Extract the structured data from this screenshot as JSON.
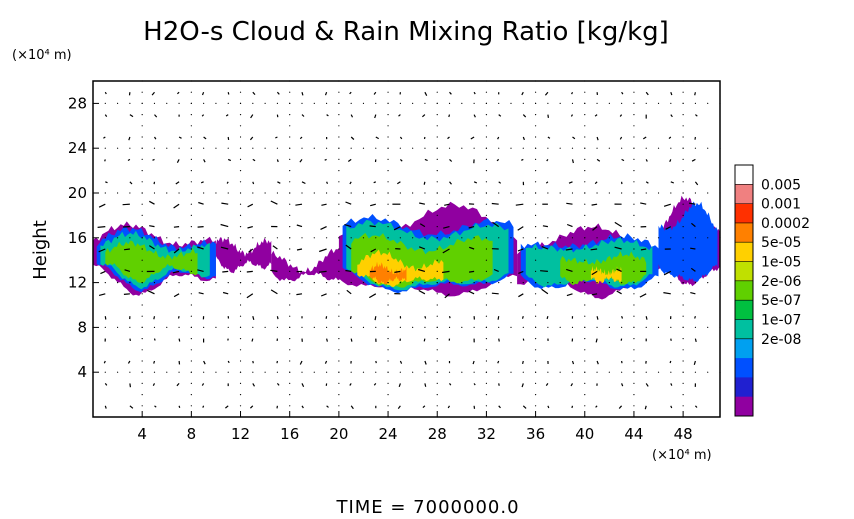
{
  "chart_data": {
    "type": "heatmap",
    "title": "H2O-s Cloud & Rain Mixing Ratio [kg/kg]",
    "ylabel": "Height",
    "x_unit_label": "(×10⁴ m)",
    "y_unit_label": "(×10⁴ m)",
    "footer": "TIME  =  7000000.0",
    "xlim": [
      0,
      51
    ],
    "ylim": [
      0,
      30
    ],
    "x_ticks": [
      "4",
      "8",
      "12",
      "16",
      "20",
      "24",
      "28",
      "32",
      "36",
      "40",
      "44",
      "48"
    ],
    "y_ticks": [
      "4",
      "8",
      "12",
      "16",
      "20",
      "24",
      "28"
    ],
    "x_tick_values": [
      4,
      8,
      12,
      16,
      20,
      24,
      28,
      32,
      36,
      40,
      44,
      48
    ],
    "y_tick_values": [
      4,
      8,
      12,
      16,
      20,
      24,
      28
    ],
    "grid": true,
    "colorbar": {
      "labels": [
        "0.005",
        "0.001",
        "0.0002",
        "5e-05",
        "1e-05",
        "2e-06",
        "5e-07",
        "1e-07",
        "2e-08"
      ],
      "colors": [
        "#ffffff",
        "#f08080",
        "#ff3000",
        "#ff8000",
        "#ffd000",
        "#c0e000",
        "#60d000",
        "#00c040",
        "#00c0a0",
        "#00a0f0",
        "#0050ff",
        "#2020d0",
        "#9000a0"
      ]
    },
    "cloud_band_layers": [
      {
        "level": 0,
        "color": "#9000a0",
        "regions": [
          {
            "x": [
              0,
              10
            ],
            "ybot": [
              10.8,
              12.6
            ],
            "ytop": [
              15.5,
              17.6
            ]
          },
          {
            "x": [
              10,
              14.5
            ],
            "ybot": [
              12.8,
              13.8
            ],
            "ytop": [
              14.6,
              16.4
            ]
          },
          {
            "x": [
              14.5,
              21.5
            ],
            "ybot": [
              11.9,
              12.8
            ],
            "ytop": [
              13.0,
              15.4
            ]
          },
          {
            "x": [
              20,
              34.5
            ],
            "ybot": [
              10.6,
              11.6
            ],
            "ytop": [
              16.6,
              19.2
            ]
          },
          {
            "x": [
              34.5,
              46
            ],
            "ybot": [
              10.6,
              12.0
            ],
            "ytop": [
              15.6,
              17.0
            ]
          },
          {
            "x": [
              46,
              51
            ],
            "ybot": [
              11.8,
              12.3
            ],
            "ytop": [
              17.6,
              19.6
            ]
          }
        ]
      },
      {
        "level": 1,
        "color": "#0050ff",
        "regions": [
          {
            "x": [
              0.3,
              10
            ],
            "ybot": [
              11.2,
              12.9
            ],
            "ytop": [
              15.2,
              17.2
            ]
          },
          {
            "x": [
              20.3,
              34.2
            ],
            "ybot": [
              10.9,
              11.8
            ],
            "ytop": [
              16.3,
              18.9
            ]
          },
          {
            "x": [
              34.8,
              46
            ],
            "ybot": [
              10.9,
              12.2
            ],
            "ytop": [
              15.3,
              16.6
            ]
          },
          {
            "x": [
              46,
              50.8
            ],
            "ybot": [
              12.0,
              12.4
            ],
            "ytop": [
              17.3,
              19.3
            ]
          }
        ]
      },
      {
        "level": 2,
        "color": "#00c0a0",
        "regions": [
          {
            "x": [
              0.6,
              9.5
            ],
            "ybot": [
              11.5,
              13.1
            ],
            "ytop": [
              14.9,
              16.7
            ]
          },
          {
            "x": [
              20.6,
              33.8
            ],
            "ybot": [
              11.1,
              12.0
            ],
            "ytop": [
              15.9,
              18.4
            ]
          },
          {
            "x": [
              35.2,
              45.5
            ],
            "ybot": [
              11.2,
              12.4
            ],
            "ytop": [
              15.0,
              16.2
            ]
          }
        ]
      },
      {
        "level": 3,
        "color": "#60d000",
        "regions": [
          {
            "x": [
              1.0,
              8.5
            ],
            "ybot": [
              12.0,
              13.4
            ],
            "ytop": [
              14.3,
              15.8
            ]
          },
          {
            "x": [
              21.0,
              32.5
            ],
            "ybot": [
              11.4,
              12.2
            ],
            "ytop": [
              14.8,
              17.0
            ]
          },
          {
            "x": [
              38.0,
              45.0
            ],
            "ybot": [
              11.6,
              12.6
            ],
            "ytop": [
              13.8,
              14.8
            ]
          }
        ]
      },
      {
        "level": 4,
        "color": "#ffd000",
        "regions": [
          {
            "x": [
              21.5,
              28.5
            ],
            "ybot": [
              11.7,
              12.3
            ],
            "ytop": [
              13.3,
              14.9
            ]
          },
          {
            "x": [
              40.5,
              43.0
            ],
            "ybot": [
              11.9,
              12.4
            ],
            "ytop": [
              12.8,
              13.4
            ]
          }
        ]
      },
      {
        "level": 5,
        "color": "#ff8000",
        "regions": [
          {
            "x": [
              22.5,
              25.5
            ],
            "ybot": [
              11.9,
              12.3
            ],
            "ytop": [
              12.9,
              13.7
            ]
          }
        ]
      }
    ],
    "vector_field_rows": [
      1,
      3,
      5,
      7,
      9,
      11,
      13,
      15,
      17,
      19,
      21,
      23,
      25,
      27,
      29
    ]
  }
}
